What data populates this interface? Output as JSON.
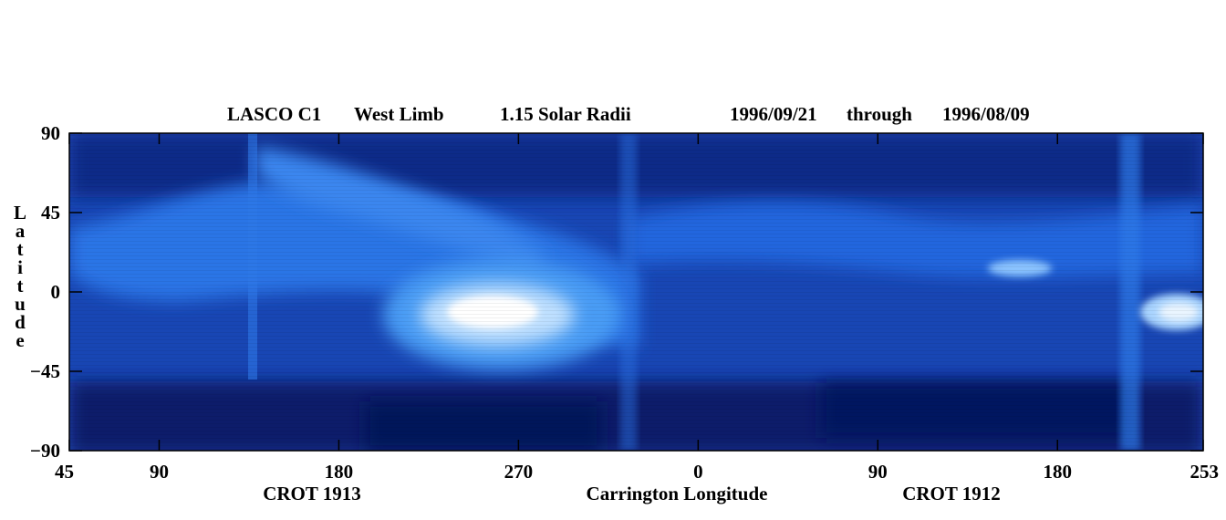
{
  "chart_data": {
    "type": "heatmap",
    "title_parts": [
      "LASCO C1",
      "West Limb",
      "1.15 Solar Radii",
      "1996/09/21",
      "through",
      "1996/08/09"
    ],
    "ylabel": "Latitude",
    "xlabel": "Carrington Longitude",
    "xlim": [
      45,
      253
    ],
    "ylim": [
      -90,
      90
    ],
    "x_ticks": [
      {
        "pos": 0,
        "label": "45"
      },
      {
        "pos": 45,
        "label": "90"
      },
      {
        "pos": 135,
        "label": "180"
      },
      {
        "pos": 225,
        "label": "270"
      },
      {
        "pos": 315,
        "label": "0"
      },
      {
        "pos": 405,
        "label": "90"
      },
      {
        "pos": 495,
        "label": "180"
      },
      {
        "pos": 568,
        "label": "253"
      }
    ],
    "x_span": 568,
    "y_ticks": [
      90,
      45,
      0,
      -45,
      -90
    ],
    "rotation_labels": [
      {
        "label": "CROT 1913",
        "pos": 122
      },
      {
        "label": "CROT 1912",
        "pos": 427
      }
    ],
    "colormap": {
      "dark": "#0a1c6a",
      "mid": "#1f62dc",
      "bright": "#ffffff"
    },
    "grid": false
  }
}
